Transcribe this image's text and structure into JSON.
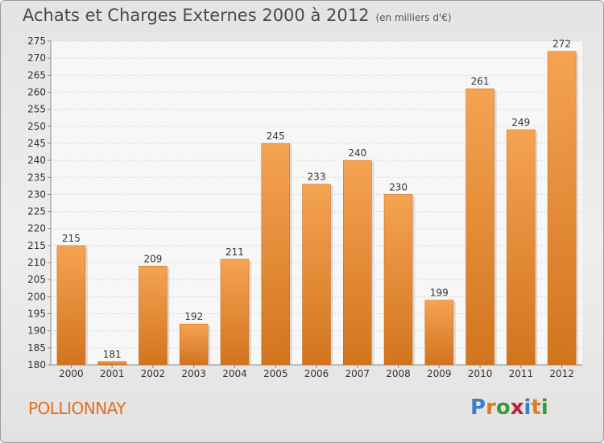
{
  "header": {
    "title": "Achats et Charges Externes 2000 à 2012",
    "subtitle": "(en milliers d'€)"
  },
  "footer": {
    "place": "POLLIONNAY",
    "logo_text": "Proxiti",
    "logo_colors": [
      "#3a7fc8",
      "#e07b20",
      "#3a9a3a",
      "#c02030",
      "#3a7fc8",
      "#e07b20",
      "#3a9a3a"
    ]
  },
  "chart_data": {
    "type": "bar",
    "categories": [
      "2000",
      "2001",
      "2002",
      "2003",
      "2004",
      "2005",
      "2006",
      "2007",
      "2008",
      "2009",
      "2010",
      "2011",
      "2012"
    ],
    "values": [
      215,
      181,
      209,
      192,
      211,
      245,
      233,
      240,
      230,
      199,
      261,
      249,
      272
    ],
    "ylim": [
      180,
      275
    ],
    "ytick_step": 5,
    "grid": true,
    "bar_color_top": "#f5a352",
    "bar_color_bottom": "#d2741e",
    "xlabel": "",
    "ylabel": ""
  }
}
